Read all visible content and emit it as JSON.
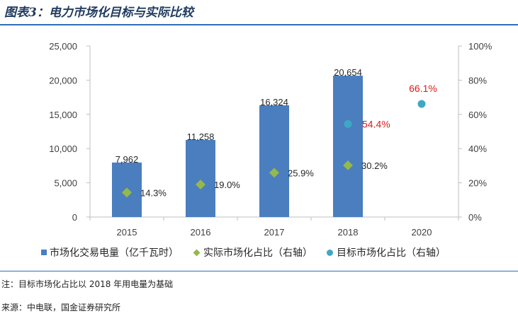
{
  "header": {
    "title": "图表3：电力市场化目标与实际比较"
  },
  "chart_data": {
    "type": "bar",
    "categories": [
      "2015",
      "2016",
      "2017",
      "2018",
      "2020"
    ],
    "series": [
      {
        "name": "市场化交易电量（亿千瓦时）",
        "kind": "bar",
        "axis": "left",
        "values": [
          7962,
          11258,
          16324,
          20654,
          null
        ],
        "labels": [
          "7,962",
          "11,258",
          "16,324",
          "20,654",
          ""
        ]
      },
      {
        "name": "实际市场化占比（右轴）",
        "kind": "diamond",
        "axis": "right",
        "values": [
          14.3,
          19.0,
          25.9,
          30.2,
          null
        ],
        "labels": [
          "14.3%",
          "19.0%",
          "25.9%",
          "30.2%",
          ""
        ]
      },
      {
        "name": "目标市场化占比（右轴）",
        "kind": "dot",
        "axis": "right",
        "values": [
          null,
          null,
          null,
          54.4,
          66.1
        ],
        "labels": [
          "",
          "",
          "",
          "54.4%",
          "66.1%"
        ]
      }
    ],
    "y_left": {
      "min": 0,
      "max": 25000,
      "ticks": [
        "0",
        "5,000",
        "10,000",
        "15,000",
        "20,000",
        "25,000"
      ]
    },
    "y_right": {
      "min": 0,
      "max": 100,
      "ticks": [
        "0%",
        "20%",
        "40%",
        "60%",
        "80%",
        "100%"
      ]
    },
    "colors": {
      "bar": "#4a7ebf",
      "diamond": "#94b84d",
      "dot": "#3ea8c4",
      "highlight": "#e01b1b"
    }
  },
  "footer": {
    "note": "注：目标市场化占比以 2018 年用电量为基础",
    "source": "来源：中电联，国金证券研究所"
  }
}
